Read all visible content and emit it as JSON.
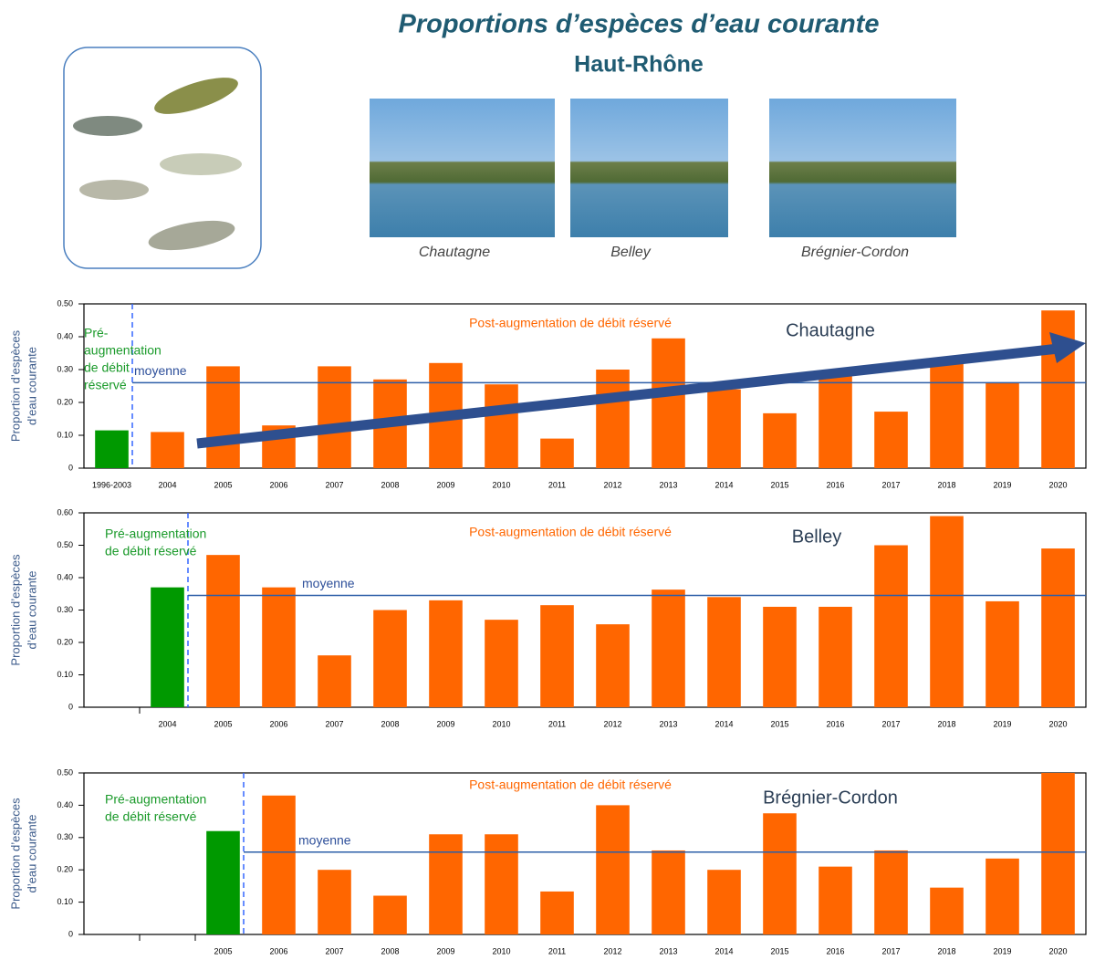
{
  "header": {
    "title": "Proportions d’espèces d’eau courante",
    "subtitle": "Haut-Rhône"
  },
  "photos": {
    "captions": [
      "Chautagne",
      "Belley",
      "Brégnier-Cordon"
    ]
  },
  "chart_data": [
    {
      "type": "bar",
      "title": "Chautagne",
      "ylabel": [
        "Proportion d’espèces",
        "d’eau courante"
      ],
      "pre_label": [
        "Pré-",
        "augmentation",
        "de débit",
        "réservé"
      ],
      "post_label": "Post-augmentation de débit réservé",
      "mean": {
        "label": "moyenne",
        "value": 0.26
      },
      "categories": [
        "1996-2003",
        "2004",
        "2005",
        "2006",
        "2007",
        "2008",
        "2009",
        "2010",
        "2011",
        "2012",
        "2013",
        "2014",
        "2015",
        "2016",
        "2017",
        "2018",
        "2019",
        "2020"
      ],
      "values": [
        0.115,
        0.11,
        0.31,
        0.13,
        0.31,
        0.27,
        0.32,
        0.255,
        0.09,
        0.3,
        0.395,
        0.24,
        0.167,
        0.29,
        0.172,
        0.33,
        0.26,
        0.48
      ],
      "colors": [
        "#009900",
        "#ff6600",
        "#ff6600",
        "#ff6600",
        "#ff6600",
        "#ff6600",
        "#ff6600",
        "#ff6600",
        "#ff6600",
        "#ff6600",
        "#ff6600",
        "#ff6600",
        "#ff6600",
        "#ff6600",
        "#ff6600",
        "#ff6600",
        "#ff6600",
        "#ff6600"
      ],
      "ylim": [
        0,
        0.5
      ],
      "yticks": [
        0,
        {
          "value": 0.1,
          "label": "0.10"
        },
        {
          "value": 0.2,
          "label": "0.20"
        },
        {
          "value": 0.3,
          "label": "0.30"
        },
        {
          "value": 0.4,
          "label": "0.40"
        },
        {
          "value": 0.5,
          "label": "0.50"
        }
      ]
    },
    {
      "type": "bar",
      "title": "Belley",
      "ylabel": [
        "Proportion d’espèces",
        "d’eau courante"
      ],
      "pre_label": [
        "Pré-augmentation",
        "de débit réservé"
      ],
      "post_label": "Post-augmentation de débit réservé",
      "mean": {
        "label": "moyenne",
        "value": 0.345
      },
      "categories": [
        null,
        "2004",
        "2005",
        "2006",
        "2007",
        "2008",
        "2009",
        "2010",
        "2011",
        "2012",
        "2013",
        "2014",
        "2015",
        "2016",
        "2017",
        "2018",
        "2019",
        "2020"
      ],
      "values": [
        null,
        0.37,
        0.47,
        0.37,
        0.16,
        0.3,
        0.33,
        0.27,
        0.315,
        0.256,
        0.363,
        0.34,
        0.31,
        0.31,
        0.5,
        0.59,
        0.327,
        0.49
      ],
      "colors": [
        null,
        "#009900",
        "#ff6600",
        "#ff6600",
        "#ff6600",
        "#ff6600",
        "#ff6600",
        "#ff6600",
        "#ff6600",
        "#ff6600",
        "#ff6600",
        "#ff6600",
        "#ff6600",
        "#ff6600",
        "#ff6600",
        "#ff6600",
        "#ff6600",
        "#ff6600"
      ],
      "ylim": [
        0,
        0.6
      ],
      "yticks": [
        0,
        {
          "value": 0.1,
          "label": "0.10"
        },
        {
          "value": 0.2,
          "label": "0.20"
        },
        {
          "value": 0.3,
          "label": "0.30"
        },
        {
          "value": 0.4,
          "label": "0.40"
        },
        {
          "value": 0.5,
          "label": "0.50"
        },
        {
          "value": 0.6,
          "label": "0.60"
        }
      ]
    },
    {
      "type": "bar",
      "title": "Brégnier-Cordon",
      "ylabel": [
        "Proportion d’espèces",
        "d’eau courante"
      ],
      "pre_label": [
        "Pré-augmentation",
        "de débit réservé"
      ],
      "post_label": "Post-augmentation de débit réservé",
      "mean": {
        "label": "moyenne",
        "value": 0.255
      },
      "categories": [
        null,
        null,
        "2005",
        "2006",
        "2007",
        "2008",
        "2009",
        "2010",
        "2011",
        "2012",
        "2013",
        "2014",
        "2015",
        "2016",
        "2017",
        "2018",
        "2019",
        "2020"
      ],
      "values": [
        null,
        null,
        0.32,
        0.43,
        0.2,
        0.12,
        0.31,
        0.31,
        0.133,
        0.4,
        0.26,
        0.2,
        0.375,
        0.21,
        0.26,
        0.145,
        0.235,
        0.5
      ],
      "colors": [
        null,
        null,
        "#009900",
        "#ff6600",
        "#ff6600",
        "#ff6600",
        "#ff6600",
        "#ff6600",
        "#ff6600",
        "#ff6600",
        "#ff6600",
        "#ff6600",
        "#ff6600",
        "#ff6600",
        "#ff6600",
        "#ff6600",
        "#ff6600",
        "#ff6600"
      ],
      "ylim": [
        0,
        0.5
      ],
      "yticks": [
        0,
        {
          "value": 0.1,
          "label": "0.10"
        },
        {
          "value": 0.2,
          "label": "0.20"
        },
        {
          "value": 0.3,
          "label": "0.30"
        },
        {
          "value": 0.4,
          "label": "0.40"
        },
        {
          "value": 0.5,
          "label": "0.50"
        }
      ]
    }
  ]
}
